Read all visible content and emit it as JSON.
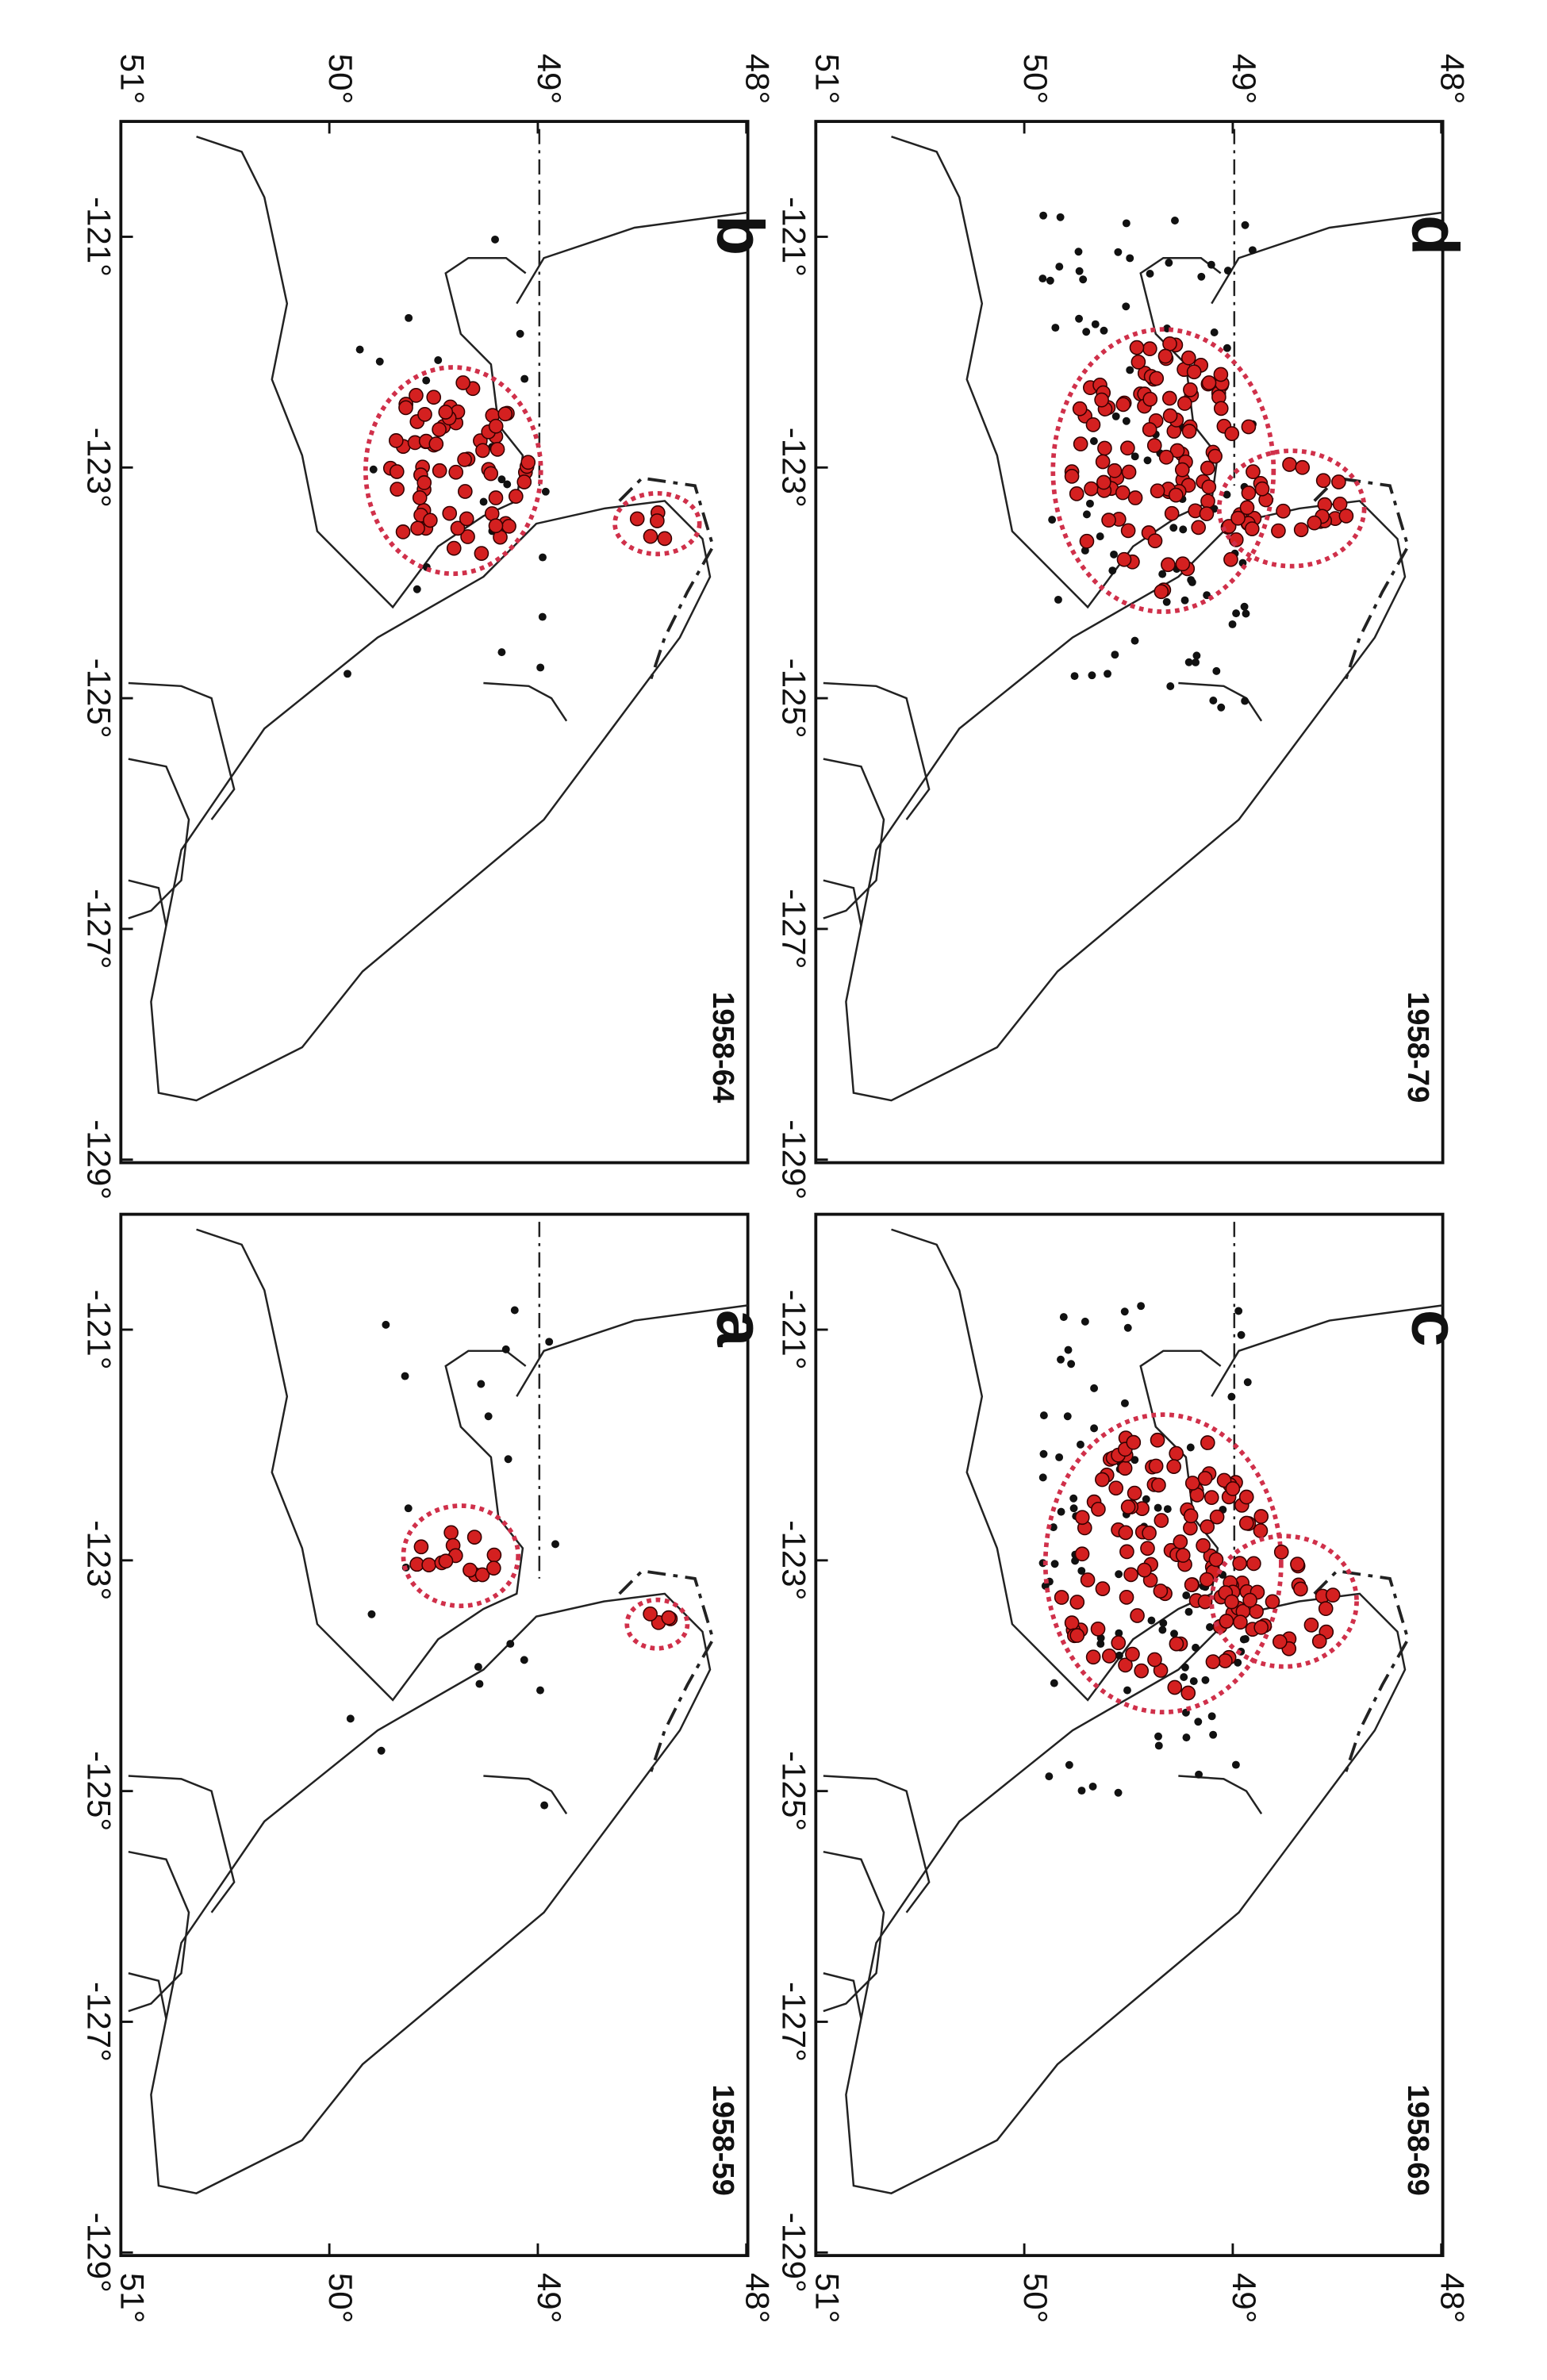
{
  "panels": [
    {
      "letter": "b",
      "period": "1958-64"
    },
    {
      "letter": "d",
      "period": "1958-79"
    },
    {
      "letter": "a",
      "period": "1958-59"
    },
    {
      "letter": "c",
      "period": "1958-69"
    }
  ],
  "longitude_ticks": [
    "-121°",
    "-123°",
    "-125°",
    "-127°",
    "-129°"
  ],
  "latitude_ticks": [
    "51°",
    "50°",
    "49°",
    "48°"
  ]
}
